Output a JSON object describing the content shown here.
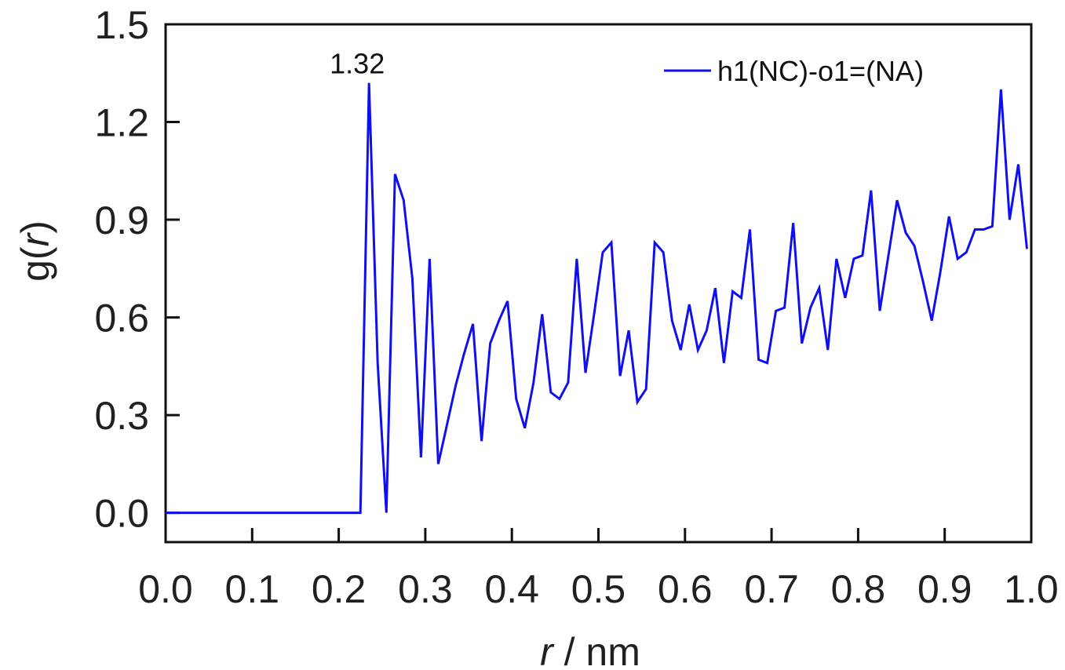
{
  "chart_data": {
    "type": "line",
    "title": "",
    "xlabel_var": "r",
    "xlabel_unit": " / nm",
    "ylabel_fn": "g(",
    "ylabel_var": "r",
    "ylabel_close": ")",
    "xlim": [
      0.0,
      1.0
    ],
    "ylim": [
      -0.09,
      1.5
    ],
    "xticks": [
      0.0,
      0.1,
      0.2,
      0.3,
      0.4,
      0.5,
      0.6,
      0.7,
      0.8,
      0.9,
      1.0
    ],
    "xtick_labels": [
      "0.0",
      "0.1",
      "0.2",
      "0.3",
      "0.4",
      "0.5",
      "0.6",
      "0.7",
      "0.8",
      "0.9",
      "1.0"
    ],
    "yticks": [
      0.0,
      0.3,
      0.6,
      0.9,
      1.2,
      1.5
    ],
    "ytick_labels": [
      "0.0",
      "0.3",
      "0.6",
      "0.9",
      "1.2",
      "1.5"
    ],
    "grid": false,
    "legend_position": "top-right",
    "colors": {
      "line": "#1010ee",
      "axis": "#111111",
      "text": "#231f20"
    },
    "series": [
      {
        "name": "h1(NC)-o1=(NA)",
        "x": [
          0.0,
          0.225,
          0.235,
          0.245,
          0.255,
          0.265,
          0.275,
          0.285,
          0.295,
          0.305,
          0.315,
          0.325,
          0.335,
          0.345,
          0.355,
          0.365,
          0.375,
          0.385,
          0.395,
          0.405,
          0.415,
          0.425,
          0.435,
          0.445,
          0.455,
          0.465,
          0.475,
          0.485,
          0.495,
          0.505,
          0.515,
          0.525,
          0.535,
          0.545,
          0.555,
          0.565,
          0.575,
          0.585,
          0.595,
          0.605,
          0.615,
          0.625,
          0.635,
          0.645,
          0.655,
          0.665,
          0.675,
          0.685,
          0.695,
          0.705,
          0.715,
          0.725,
          0.735,
          0.745,
          0.755,
          0.765,
          0.775,
          0.785,
          0.795,
          0.805,
          0.815,
          0.825,
          0.835,
          0.845,
          0.855,
          0.865,
          0.875,
          0.885,
          0.895,
          0.905,
          0.915,
          0.925,
          0.935,
          0.945,
          0.955,
          0.965,
          0.975,
          0.985,
          0.995
        ],
        "y": [
          0.0,
          0.0,
          1.32,
          0.46,
          0.0,
          1.04,
          0.96,
          0.72,
          0.17,
          0.78,
          0.15,
          0.27,
          0.39,
          0.49,
          0.58,
          0.22,
          0.52,
          0.59,
          0.65,
          0.35,
          0.26,
          0.4,
          0.61,
          0.37,
          0.35,
          0.4,
          0.78,
          0.43,
          0.61,
          0.8,
          0.83,
          0.42,
          0.56,
          0.34,
          0.38,
          0.83,
          0.8,
          0.59,
          0.5,
          0.64,
          0.5,
          0.56,
          0.69,
          0.46,
          0.68,
          0.66,
          0.87,
          0.47,
          0.46,
          0.62,
          0.63,
          0.89,
          0.52,
          0.63,
          0.69,
          0.5,
          0.78,
          0.66,
          0.78,
          0.79,
          0.99,
          0.62,
          0.79,
          0.96,
          0.86,
          0.82,
          0.71,
          0.59,
          0.74,
          0.91,
          0.78,
          0.8,
          0.87,
          0.87,
          0.88,
          1.3,
          0.9,
          1.07,
          0.81
        ]
      }
    ],
    "annotations": [
      {
        "text": "1.32",
        "x": 0.235,
        "y": 1.32
      }
    ]
  }
}
